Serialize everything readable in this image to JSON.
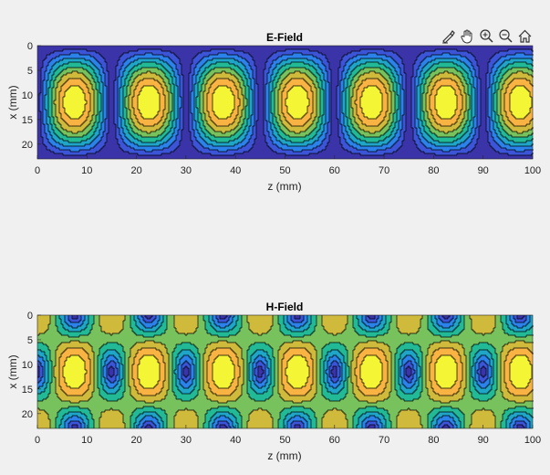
{
  "toolbar": {
    "icons": [
      "brush-icon",
      "pan-hand-icon",
      "zoom-in-icon",
      "zoom-out-icon",
      "home-icon"
    ]
  },
  "colors": {
    "levels": [
      "#3a34a8",
      "#3c54d8",
      "#2a82ea",
      "#1ea5c8",
      "#22b997",
      "#77c25c",
      "#cfba3c",
      "#f9b342",
      "#f4f534"
    ],
    "background": "#f0f0f0",
    "contour_line": "#000000"
  },
  "chart_data": [
    {
      "type": "heatmap",
      "title": "E-Field",
      "xlabel": "z (mm)",
      "ylabel": "x (mm)",
      "xlim": [
        0,
        100
      ],
      "ylim": [
        0,
        23
      ],
      "y_reversed": true,
      "xticks": [
        0,
        10,
        20,
        30,
        40,
        50,
        60,
        70,
        80,
        90,
        100
      ],
      "yticks": [
        0,
        5,
        10,
        15,
        20
      ],
      "field": "abs(sin(pi*x/23)*sin(2*pi*z/30))",
      "hotspot_centers_z": [
        7.5,
        22.5,
        37.5,
        52.5,
        67.5,
        82.5,
        97.5
      ],
      "hotspot_center_x": 11.5,
      "levels": 9
    },
    {
      "type": "heatmap",
      "title": "H-Field",
      "xlabel": "z (mm)",
      "ylabel": "x (mm)",
      "xlim": [
        0,
        100
      ],
      "ylim": [
        0,
        23
      ],
      "y_reversed": true,
      "xticks": [
        0,
        10,
        20,
        30,
        40,
        50,
        60,
        70,
        80,
        90,
        100
      ],
      "yticks": [
        0,
        5,
        10,
        15,
        20
      ],
      "field": "sqrt((sin(pi*x/23)*sin(2*pi*z/30))^2 + 0.6*(cos(pi*x/23)*cos(2*pi*z/30))^2)",
      "hotspot_centers_z": [
        7.5,
        22.5,
        37.5,
        52.5,
        67.5,
        82.5,
        97.5
      ],
      "hotspot_center_x": 11.5,
      "levels": 9
    }
  ]
}
